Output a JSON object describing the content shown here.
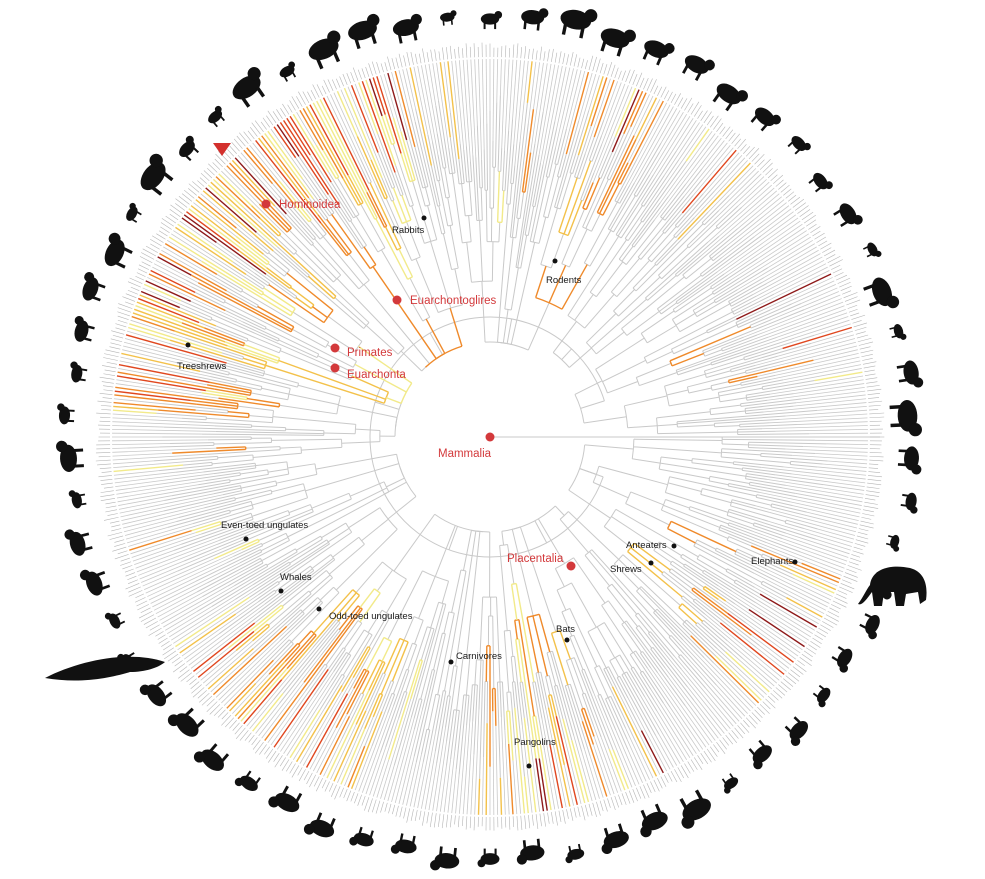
{
  "figure": {
    "colors": {
      "branch_default": "#c9c9c9",
      "node_major": "#d3393b",
      "node_minor": "#111111",
      "heat_scale": [
        "#f2ea8a",
        "#f3c14a",
        "#ef8a2b",
        "#e0471f",
        "#8e1a1a"
      ],
      "silhouette": "#111111",
      "marker": "#d3302d"
    },
    "major_clades": [
      {
        "label": "Mammalia"
      },
      {
        "label": "Placentalia"
      },
      {
        "label": "Euarchontoglires"
      },
      {
        "label": "Primates"
      },
      {
        "label": "Euarchonta"
      },
      {
        "label": "Hominoidea"
      }
    ],
    "minor_clades": [
      {
        "label": "Rabbits"
      },
      {
        "label": "Rodents"
      },
      {
        "label": "Treeshrews"
      },
      {
        "label": "Even-toed ungulates"
      },
      {
        "label": "Whales"
      },
      {
        "label": "Odd-toed ungulates"
      },
      {
        "label": "Carnivores"
      },
      {
        "label": "Bats"
      },
      {
        "label": "Pangolins"
      },
      {
        "label": "Shrews"
      },
      {
        "label": "Anteaters"
      },
      {
        "label": "Elephants"
      }
    ],
    "silhouettes": [
      "chimpanzee-icon",
      "baboon-icon",
      "monkey-icon",
      "hare-icon",
      "rabbit-icon",
      "squirrel-icon",
      "beaver-icon",
      "porcupine-icon",
      "mouse-icon",
      "rat-icon",
      "kangaroo-icon",
      "elephant-icon",
      "anteater-icon",
      "bat-icon",
      "pangolin-icon",
      "meerkat-icon",
      "lion-icon",
      "wolf-icon",
      "bear-icon",
      "walrus-icon",
      "horse-icon",
      "rhino-icon",
      "hippo-icon",
      "whale-icon",
      "giraffe-icon",
      "deer-icon",
      "moose-icon",
      "bison-icon",
      "goat-icon",
      "lemur-icon",
      "tarsier-icon",
      "treeshrew-icon"
    ]
  }
}
